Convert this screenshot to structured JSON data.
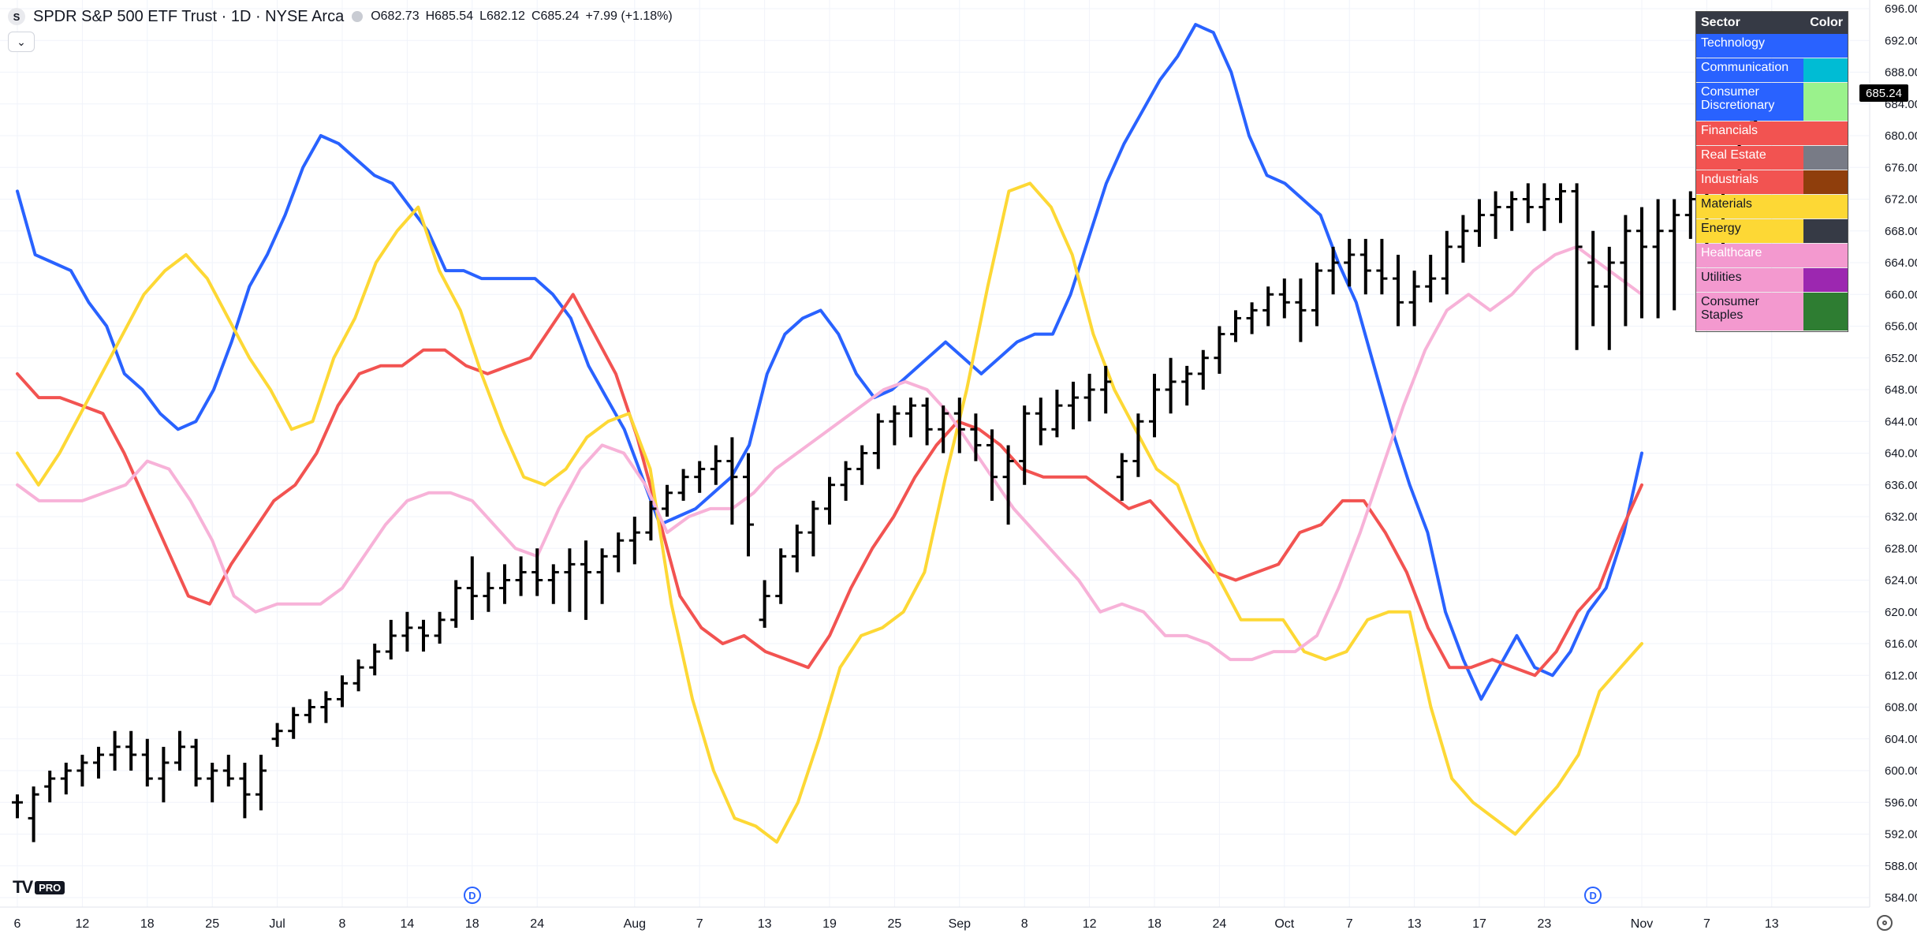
{
  "header": {
    "symbol_badge": "S",
    "title": "SPDR S&P 500 ETF Trust · 1D · NYSE Arca",
    "ohlc": {
      "o_label": "O",
      "o": "682.73",
      "h_label": "H",
      "h": "685.54",
      "l_label": "L",
      "l": "682.12",
      "c_label": "C",
      "c": "685.24",
      "change": "+7.99 (+1.18%)"
    }
  },
  "collapse_icon": "chevron-down-icon",
  "last_price_label": "685.24",
  "legend": {
    "header": {
      "sector": "Sector",
      "color": "Color"
    },
    "rows": [
      {
        "name": "Technology",
        "bg": "#2962ff",
        "swatch": "#2962ff",
        "text": "light"
      },
      {
        "name": "Communication",
        "bg": "#2962ff",
        "swatch": "#00bcd4",
        "text": "light"
      },
      {
        "name": "Consumer Discretionary",
        "bg": "#2962ff",
        "swatch": "#9af28c",
        "text": "light",
        "tall": true
      },
      {
        "name": "Financials",
        "bg": "#f25351",
        "swatch": "#f25351",
        "text": "light"
      },
      {
        "name": "Real Estate",
        "bg": "#f25351",
        "swatch": "#787b86",
        "text": "light"
      },
      {
        "name": "Industrials",
        "bg": "#f25351",
        "swatch": "#8f3e0c",
        "text": "light"
      },
      {
        "name": "Materials",
        "bg": "#fdd835",
        "swatch": "#fdd835",
        "text": "dark"
      },
      {
        "name": "Energy",
        "bg": "#fdd835",
        "swatch": "#363a45",
        "text": "dark"
      },
      {
        "name": "Healthcare",
        "bg": "#f399cf",
        "swatch": "#f399cf",
        "text": "light"
      },
      {
        "name": "Utilities",
        "bg": "#f399cf",
        "swatch": "#9c27b0",
        "text": "dark"
      },
      {
        "name": "Consumer Staples",
        "bg": "#f399cf",
        "swatch": "#2e7d32",
        "text": "dark",
        "tall": true
      }
    ]
  },
  "logo": {
    "mark": "TV",
    "pro": "PRO"
  },
  "dividend_markers": [
    {
      "label": "D",
      "x_index": 28
    },
    {
      "label": "D",
      "x_index": 97
    }
  ],
  "settings_icon": "gear-icon",
  "chart_data": {
    "type": "line",
    "ylim": [
      582,
      697
    ],
    "yticks": [
      584,
      588,
      592,
      596,
      600,
      604,
      608,
      612,
      616,
      620,
      624,
      628,
      632,
      636,
      640,
      644,
      648,
      652,
      656,
      660,
      664,
      668,
      672,
      676,
      680,
      684,
      688,
      692,
      696
    ],
    "xticks": [
      {
        "i": 0,
        "label": "6"
      },
      {
        "i": 4,
        "label": "12"
      },
      {
        "i": 8,
        "label": "18"
      },
      {
        "i": 12,
        "label": "25"
      },
      {
        "i": 16,
        "label": "Jul"
      },
      {
        "i": 20,
        "label": "8"
      },
      {
        "i": 24,
        "label": "14"
      },
      {
        "i": 28,
        "label": "18"
      },
      {
        "i": 32,
        "label": "24"
      },
      {
        "i": 38,
        "label": "Aug"
      },
      {
        "i": 42,
        "label": "7"
      },
      {
        "i": 46,
        "label": "13"
      },
      {
        "i": 50,
        "label": "19"
      },
      {
        "i": 54,
        "label": "25"
      },
      {
        "i": 58,
        "label": "Sep"
      },
      {
        "i": 62,
        "label": "8"
      },
      {
        "i": 66,
        "label": "12"
      },
      {
        "i": 70,
        "label": "18"
      },
      {
        "i": 74,
        "label": "24"
      },
      {
        "i": 78,
        "label": "Oct"
      },
      {
        "i": 82,
        "label": "7"
      },
      {
        "i": 86,
        "label": "13"
      },
      {
        "i": 90,
        "label": "17"
      },
      {
        "i": 94,
        "label": "23"
      },
      {
        "i": 100,
        "label": "Nov"
      },
      {
        "i": 104,
        "label": "7"
      },
      {
        "i": 108,
        "label": "13"
      }
    ],
    "ohlc": [
      [
        596,
        597,
        594,
        596
      ],
      [
        594,
        598,
        591,
        597
      ],
      [
        598,
        600,
        596,
        599
      ],
      [
        599,
        601,
        597,
        600
      ],
      [
        600,
        602,
        598,
        601
      ],
      [
        601,
        603,
        599,
        602
      ],
      [
        602,
        605,
        600,
        603
      ],
      [
        603,
        605,
        600,
        602
      ],
      [
        602,
        604,
        598,
        599
      ],
      [
        599,
        603,
        596,
        601
      ],
      [
        601,
        605,
        600,
        603
      ],
      [
        603,
        604,
        598,
        599
      ],
      [
        599,
        601,
        596,
        600
      ],
      [
        600,
        602,
        598,
        599
      ],
      [
        599,
        601,
        594,
        597
      ],
      [
        597,
        602,
        595,
        600
      ],
      [
        604,
        606,
        603,
        605
      ],
      [
        605,
        608,
        604,
        607
      ],
      [
        607,
        609,
        606,
        608
      ],
      [
        608,
        610,
        606,
        609
      ],
      [
        609,
        612,
        608,
        611
      ],
      [
        611,
        614,
        610,
        613
      ],
      [
        613,
        616,
        612,
        615
      ],
      [
        615,
        619,
        614,
        617
      ],
      [
        617,
        620,
        615,
        618
      ],
      [
        618,
        619,
        615,
        617
      ],
      [
        617,
        620,
        616,
        619
      ],
      [
        619,
        624,
        618,
        623
      ],
      [
        623,
        627,
        619,
        622
      ],
      [
        622,
        625,
        620,
        623
      ],
      [
        623,
        626,
        621,
        624
      ],
      [
        624,
        627,
        622,
        625
      ],
      [
        625,
        628,
        622,
        624
      ],
      [
        624,
        626,
        621,
        625
      ],
      [
        625,
        628,
        620,
        626
      ],
      [
        626,
        629,
        619,
        625
      ],
      [
        625,
        628,
        621,
        627
      ],
      [
        627,
        630,
        625,
        629
      ],
      [
        629,
        632,
        626,
        630
      ],
      [
        630,
        634,
        629,
        633
      ],
      [
        633,
        636,
        632,
        635
      ],
      [
        635,
        638,
        634,
        637
      ],
      [
        637,
        639,
        635,
        638
      ],
      [
        638,
        641,
        636,
        639
      ],
      [
        639,
        642,
        631,
        637
      ],
      [
        637,
        640,
        627,
        631
      ],
      [
        619,
        624,
        618,
        622
      ],
      [
        622,
        628,
        621,
        627
      ],
      [
        627,
        631,
        625,
        630
      ],
      [
        630,
        634,
        627,
        633
      ],
      [
        633,
        637,
        631,
        636
      ],
      [
        636,
        639,
        634,
        638
      ],
      [
        638,
        641,
        636,
        640
      ],
      [
        640,
        645,
        638,
        644
      ],
      [
        644,
        646,
        641,
        645
      ],
      [
        645,
        647,
        642,
        646
      ],
      [
        646,
        647,
        641,
        643
      ],
      [
        643,
        646,
        640,
        645
      ],
      [
        645,
        647,
        640,
        643
      ],
      [
        643,
        645,
        639,
        641
      ],
      [
        641,
        643,
        634,
        637
      ],
      [
        637,
        641,
        631,
        639
      ],
      [
        639,
        646,
        636,
        645
      ],
      [
        645,
        647,
        641,
        643
      ],
      [
        643,
        648,
        642,
        646
      ],
      [
        646,
        649,
        643,
        647
      ],
      [
        647,
        650,
        644,
        648
      ],
      [
        648,
        651,
        645,
        649
      ],
      [
        637,
        640,
        634,
        639
      ],
      [
        639,
        645,
        637,
        644
      ],
      [
        644,
        650,
        642,
        648
      ],
      [
        648,
        652,
        645,
        649
      ],
      [
        649,
        651,
        646,
        650
      ],
      [
        650,
        653,
        648,
        652
      ],
      [
        652,
        656,
        650,
        655
      ],
      [
        655,
        658,
        654,
        657
      ],
      [
        657,
        659,
        655,
        658
      ],
      [
        658,
        661,
        656,
        660
      ],
      [
        660,
        662,
        657,
        659
      ],
      [
        659,
        662,
        654,
        658
      ],
      [
        658,
        664,
        656,
        663
      ],
      [
        663,
        666,
        660,
        664
      ],
      [
        664,
        667,
        661,
        665
      ],
      [
        665,
        667,
        660,
        663
      ],
      [
        663,
        667,
        660,
        662
      ],
      [
        662,
        665,
        656,
        659
      ],
      [
        659,
        663,
        656,
        661
      ],
      [
        661,
        665,
        659,
        662
      ],
      [
        662,
        668,
        660,
        666
      ],
      [
        666,
        670,
        664,
        668
      ],
      [
        668,
        672,
        666,
        670
      ],
      [
        670,
        673,
        667,
        671
      ],
      [
        671,
        673,
        668,
        672
      ],
      [
        672,
        674,
        669,
        671
      ],
      [
        671,
        674,
        668,
        672
      ],
      [
        672,
        674,
        669,
        673
      ],
      [
        673,
        674,
        653,
        666
      ],
      [
        664,
        668,
        656,
        661
      ],
      [
        661,
        666,
        653,
        664
      ],
      [
        664,
        670,
        656,
        668
      ],
      [
        668,
        671,
        657,
        666
      ],
      [
        666,
        672,
        657,
        668
      ],
      [
        668,
        672,
        658,
        670
      ],
      [
        670,
        673,
        667,
        672
      ],
      [
        672,
        673,
        664,
        668
      ],
      [
        668,
        673,
        666,
        672
      ],
      [
        676,
        679,
        675,
        677
      ],
      [
        682,
        686,
        681,
        685
      ]
    ],
    "series": [
      {
        "color": "#2962ff",
        "values": [
          673,
          665,
          664,
          663,
          659,
          656,
          650,
          648,
          645,
          643,
          644,
          648,
          654,
          661,
          665,
          670,
          676,
          680,
          679,
          677,
          675,
          674,
          671,
          668,
          663,
          663,
          662,
          662,
          662,
          662,
          660,
          657,
          651,
          647,
          643,
          637,
          631,
          632,
          633,
          635,
          637,
          641,
          650,
          655,
          657,
          658,
          655,
          650,
          647,
          648,
          650,
          652,
          654,
          652,
          650,
          652,
          654,
          655,
          655,
          660,
          667,
          674,
          679,
          683,
          687,
          690,
          694,
          693,
          688,
          680,
          675,
          674,
          672,
          670,
          664,
          659,
          651,
          643,
          636,
          630,
          620,
          614,
          609,
          613,
          617,
          613,
          612,
          615,
          620,
          623,
          630,
          640
        ]
      },
      {
        "color": "#f25351",
        "values": [
          650,
          647,
          647,
          646,
          645,
          640,
          634,
          628,
          622,
          621,
          626,
          630,
          634,
          636,
          640,
          646,
          650,
          651,
          651,
          653,
          653,
          651,
          650,
          651,
          652,
          656,
          660,
          655,
          650,
          642,
          632,
          622,
          618,
          616,
          617,
          615,
          614,
          613,
          617,
          623,
          628,
          632,
          637,
          641,
          644,
          643,
          641,
          638,
          637,
          637,
          637,
          635,
          633,
          634,
          631,
          628,
          625,
          624,
          625,
          626,
          630,
          631,
          634,
          634,
          630,
          625,
          618,
          613,
          613,
          614,
          613,
          612,
          615,
          620,
          623,
          630,
          636
        ]
      },
      {
        "color": "#fdd835",
        "values": [
          640,
          636,
          640,
          645,
          650,
          655,
          660,
          663,
          665,
          662,
          657,
          652,
          648,
          643,
          644,
          652,
          657,
          664,
          668,
          671,
          663,
          658,
          650,
          643,
          637,
          636,
          638,
          642,
          644,
          645,
          638,
          621,
          609,
          600,
          594,
          593,
          591,
          596,
          604,
          613,
          617,
          618,
          620,
          625,
          637,
          648,
          661,
          673,
          674,
          671,
          665,
          655,
          648,
          643,
          638,
          636,
          629,
          624,
          619,
          619,
          619,
          615,
          614,
          615,
          619,
          620,
          620,
          608,
          599,
          596,
          594,
          592,
          595,
          598,
          602,
          610,
          613,
          616
        ]
      },
      {
        "color": "#f7b2d8",
        "values": [
          636,
          634,
          634,
          634,
          635,
          636,
          639,
          638,
          634,
          629,
          622,
          620,
          621,
          621,
          621,
          623,
          627,
          631,
          634,
          635,
          635,
          634,
          631,
          628,
          627,
          633,
          638,
          641,
          640,
          636,
          630,
          632,
          633,
          633,
          635,
          638,
          640,
          642,
          644,
          646,
          648,
          649,
          648,
          645,
          641,
          637,
          633,
          630,
          627,
          624,
          620,
          621,
          620,
          617,
          617,
          616,
          614,
          614,
          615,
          615,
          617,
          623,
          630,
          638,
          646,
          653,
          658,
          660,
          658,
          660,
          663,
          665,
          666,
          664,
          662,
          660
        ]
      }
    ],
    "series_x_ranges": [
      [
        0,
        100
      ],
      [
        0,
        100
      ],
      [
        0,
        100
      ],
      [
        0,
        100
      ]
    ]
  }
}
